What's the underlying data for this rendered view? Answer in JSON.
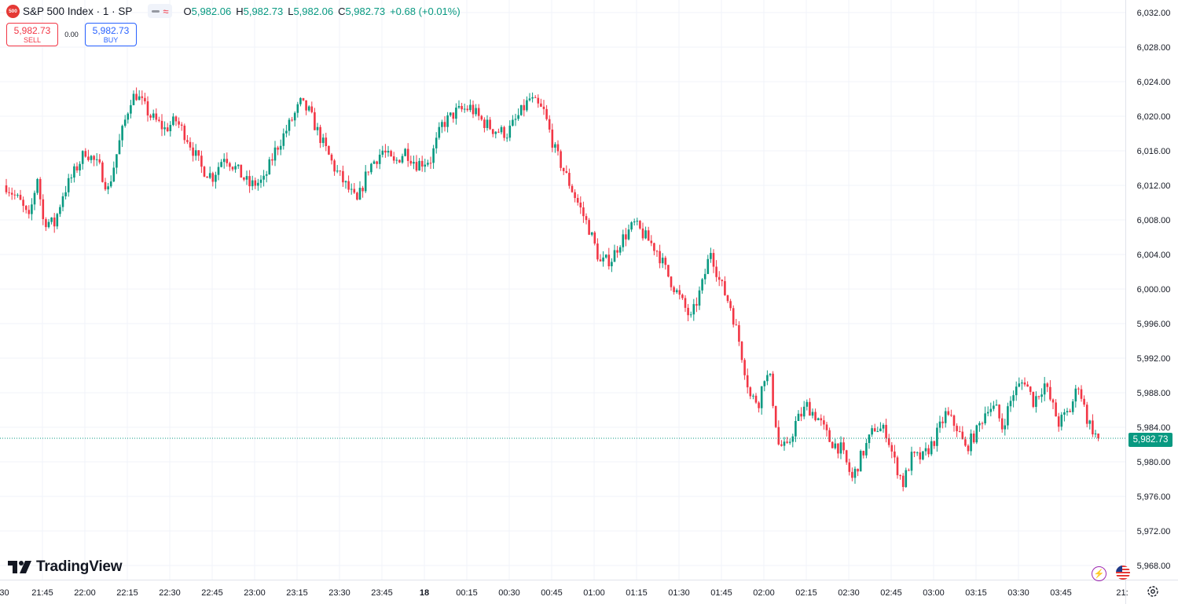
{
  "header": {
    "symbol_badge": "500",
    "symbol_title": "S&P 500 Index · 1 · SP",
    "ohlc": {
      "o_label": "O",
      "o": "5,982.06",
      "h_label": "H",
      "h": "5,982.73",
      "l_label": "L",
      "l": "5,982.06",
      "c_label": "C",
      "c": "5,982.73",
      "change": "+0.68 (+0.01%)"
    }
  },
  "trade": {
    "sell_price": "5,982.73",
    "sell_label": "SELL",
    "spread": "0.00",
    "buy_price": "5,982.73",
    "buy_label": "BUY"
  },
  "branding": {
    "logo_text": "TradingView"
  },
  "colors": {
    "up": "#089981",
    "down": "#f23645",
    "grid": "#f0f3fa",
    "axis_text": "#131722",
    "price_line": "#089981"
  },
  "icons": [
    "sym-badge",
    "pill-dash-icon",
    "wave-icon",
    "bolt-icon",
    "flag-icon",
    "gear-icon"
  ],
  "chart_data": {
    "type": "candlestick",
    "title": "S&P 500 Index · 1 · SP",
    "interval": "1 minute",
    "last_price": 5982.73,
    "last_price_label": "5,982.73",
    "y_ticks": [
      "6,032.00",
      "6,028.00",
      "6,024.00",
      "6,020.00",
      "6,016.00",
      "6,012.00",
      "6,008.00",
      "6,004.00",
      "6,000.00",
      "5,996.00",
      "5,992.00",
      "5,988.00",
      "5,984.00",
      "5,980.00",
      "5,976.00",
      "5,972.00",
      "5,968.00"
    ],
    "y_tick_values": [
      6032,
      6028,
      6024,
      6020,
      6016,
      6012,
      6008,
      6004,
      6000,
      5996,
      5992,
      5988,
      5984,
      5980,
      5976,
      5972,
      5968
    ],
    "ylim": [
      5966.3,
      6033.4
    ],
    "x_ticks": [
      ":30",
      "21:45",
      "22:00",
      "22:15",
      "22:30",
      "22:45",
      "23:00",
      "23:15",
      "23:30",
      "23:45",
      "18",
      "00:15",
      "00:30",
      "00:45",
      "01:00",
      "01:15",
      "01:30",
      "01:45",
      "02:00",
      "02:15",
      "02:30",
      "02:45",
      "03:00",
      "03:15",
      "03:30",
      "03:45",
      "21:"
    ],
    "grid": true,
    "trend_anchors": [
      [
        "21:30",
        6012.0
      ],
      [
        "21:35",
        6010.0
      ],
      [
        "21:38",
        6008.0
      ],
      [
        "21:41",
        6013.0
      ],
      [
        "21:43",
        6008.0
      ],
      [
        "21:47",
        6007.5
      ],
      [
        "21:50",
        6011.0
      ],
      [
        "21:54",
        6013.5
      ],
      [
        "21:58",
        6016.0
      ],
      [
        "22:03",
        6014.0
      ],
      [
        "22:06",
        6011.5
      ],
      [
        "22:10",
        6017.0
      ],
      [
        "22:14",
        6022.0
      ],
      [
        "22:16",
        6022.5
      ],
      [
        "22:21",
        6020.0
      ],
      [
        "22:26",
        6018.5
      ],
      [
        "22:30",
        6019.5
      ],
      [
        "22:34",
        6017.5
      ],
      [
        "22:39",
        6014.0
      ],
      [
        "22:43",
        6013.0
      ],
      [
        "22:47",
        6015.5
      ],
      [
        "22:51",
        6014.0
      ],
      [
        "22:56",
        6012.0
      ],
      [
        "23:01",
        6012.5
      ],
      [
        "23:05",
        6016.0
      ],
      [
        "23:10",
        6019.0
      ],
      [
        "23:14",
        6021.5
      ],
      [
        "23:17",
        6020.5
      ],
      [
        "23:21",
        6017.5
      ],
      [
        "23:26",
        6014.0
      ],
      [
        "23:29",
        6012.5
      ],
      [
        "23:34",
        6010.0
      ],
      [
        "23:38",
        6014.0
      ],
      [
        "23:43",
        6016.0
      ],
      [
        "23:47",
        6014.5
      ],
      [
        "23:51",
        6016.0
      ],
      [
        "23:55",
        6014.5
      ],
      [
        "00:00",
        6015.0
      ],
      [
        "00:04",
        6019.0
      ],
      [
        "00:09",
        6020.5
      ],
      [
        "00:14",
        6021.0
      ],
      [
        "00:18",
        6019.5
      ],
      [
        "00:22",
        6018.5
      ],
      [
        "00:27",
        6018.0
      ],
      [
        "00:31",
        6020.0
      ],
      [
        "00:35",
        6022.0
      ],
      [
        "00:40",
        6020.5
      ],
      [
        "00:44",
        6016.0
      ],
      [
        "00:48",
        6013.0
      ],
      [
        "00:52",
        6010.0
      ],
      [
        "00:56",
        6007.0
      ],
      [
        "01:00",
        6003.0
      ],
      [
        "01:04",
        6003.5
      ],
      [
        "01:07",
        6005.5
      ],
      [
        "01:12",
        6007.5
      ],
      [
        "01:16",
        6006.0
      ],
      [
        "01:20",
        6004.5
      ],
      [
        "01:24",
        6001.5
      ],
      [
        "01:28",
        5999.0
      ],
      [
        "01:32",
        5996.5
      ],
      [
        "01:36",
        6000.5
      ],
      [
        "01:39",
        6004.5
      ],
      [
        "01:42",
        6001.0
      ],
      [
        "01:46",
        5998.0
      ],
      [
        "01:49",
        5994.0
      ],
      [
        "01:53",
        5987.5
      ],
      [
        "01:56",
        5987.0
      ],
      [
        "01:58",
        5990.0
      ],
      [
        "02:00",
        5989.5
      ],
      [
        "02:03",
        5982.0
      ],
      [
        "02:06",
        5981.5
      ],
      [
        "02:09",
        5984.5
      ],
      [
        "02:13",
        5986.5
      ],
      [
        "02:17",
        5985.0
      ],
      [
        "02:21",
        5982.5
      ],
      [
        "02:25",
        5981.5
      ],
      [
        "02:29",
        5978.0
      ],
      [
        "02:32",
        5980.5
      ],
      [
        "02:37",
        5984.0
      ],
      [
        "02:41",
        5983.5
      ],
      [
        "02:44",
        5980.0
      ],
      [
        "02:47",
        5977.5
      ],
      [
        "02:50",
        5980.5
      ],
      [
        "02:54",
        5980.5
      ],
      [
        "02:58",
        5982.5
      ],
      [
        "03:02",
        5985.5
      ],
      [
        "03:06",
        5984.0
      ],
      [
        "03:09",
        5981.5
      ],
      [
        "03:13",
        5983.5
      ],
      [
        "03:17",
        5986.5
      ],
      [
        "03:20",
        5986.0
      ],
      [
        "03:22",
        5984.0
      ],
      [
        "03:26",
        5988.0
      ],
      [
        "03:30",
        5989.5
      ],
      [
        "03:33",
        5987.0
      ],
      [
        "03:37",
        5989.0
      ],
      [
        "03:42",
        5984.5
      ],
      [
        "03:46",
        5986.0
      ],
      [
        "03:49",
        5989.0
      ],
      [
        "03:52",
        5985.0
      ],
      [
        "03:56",
        5982.5
      ]
    ]
  }
}
